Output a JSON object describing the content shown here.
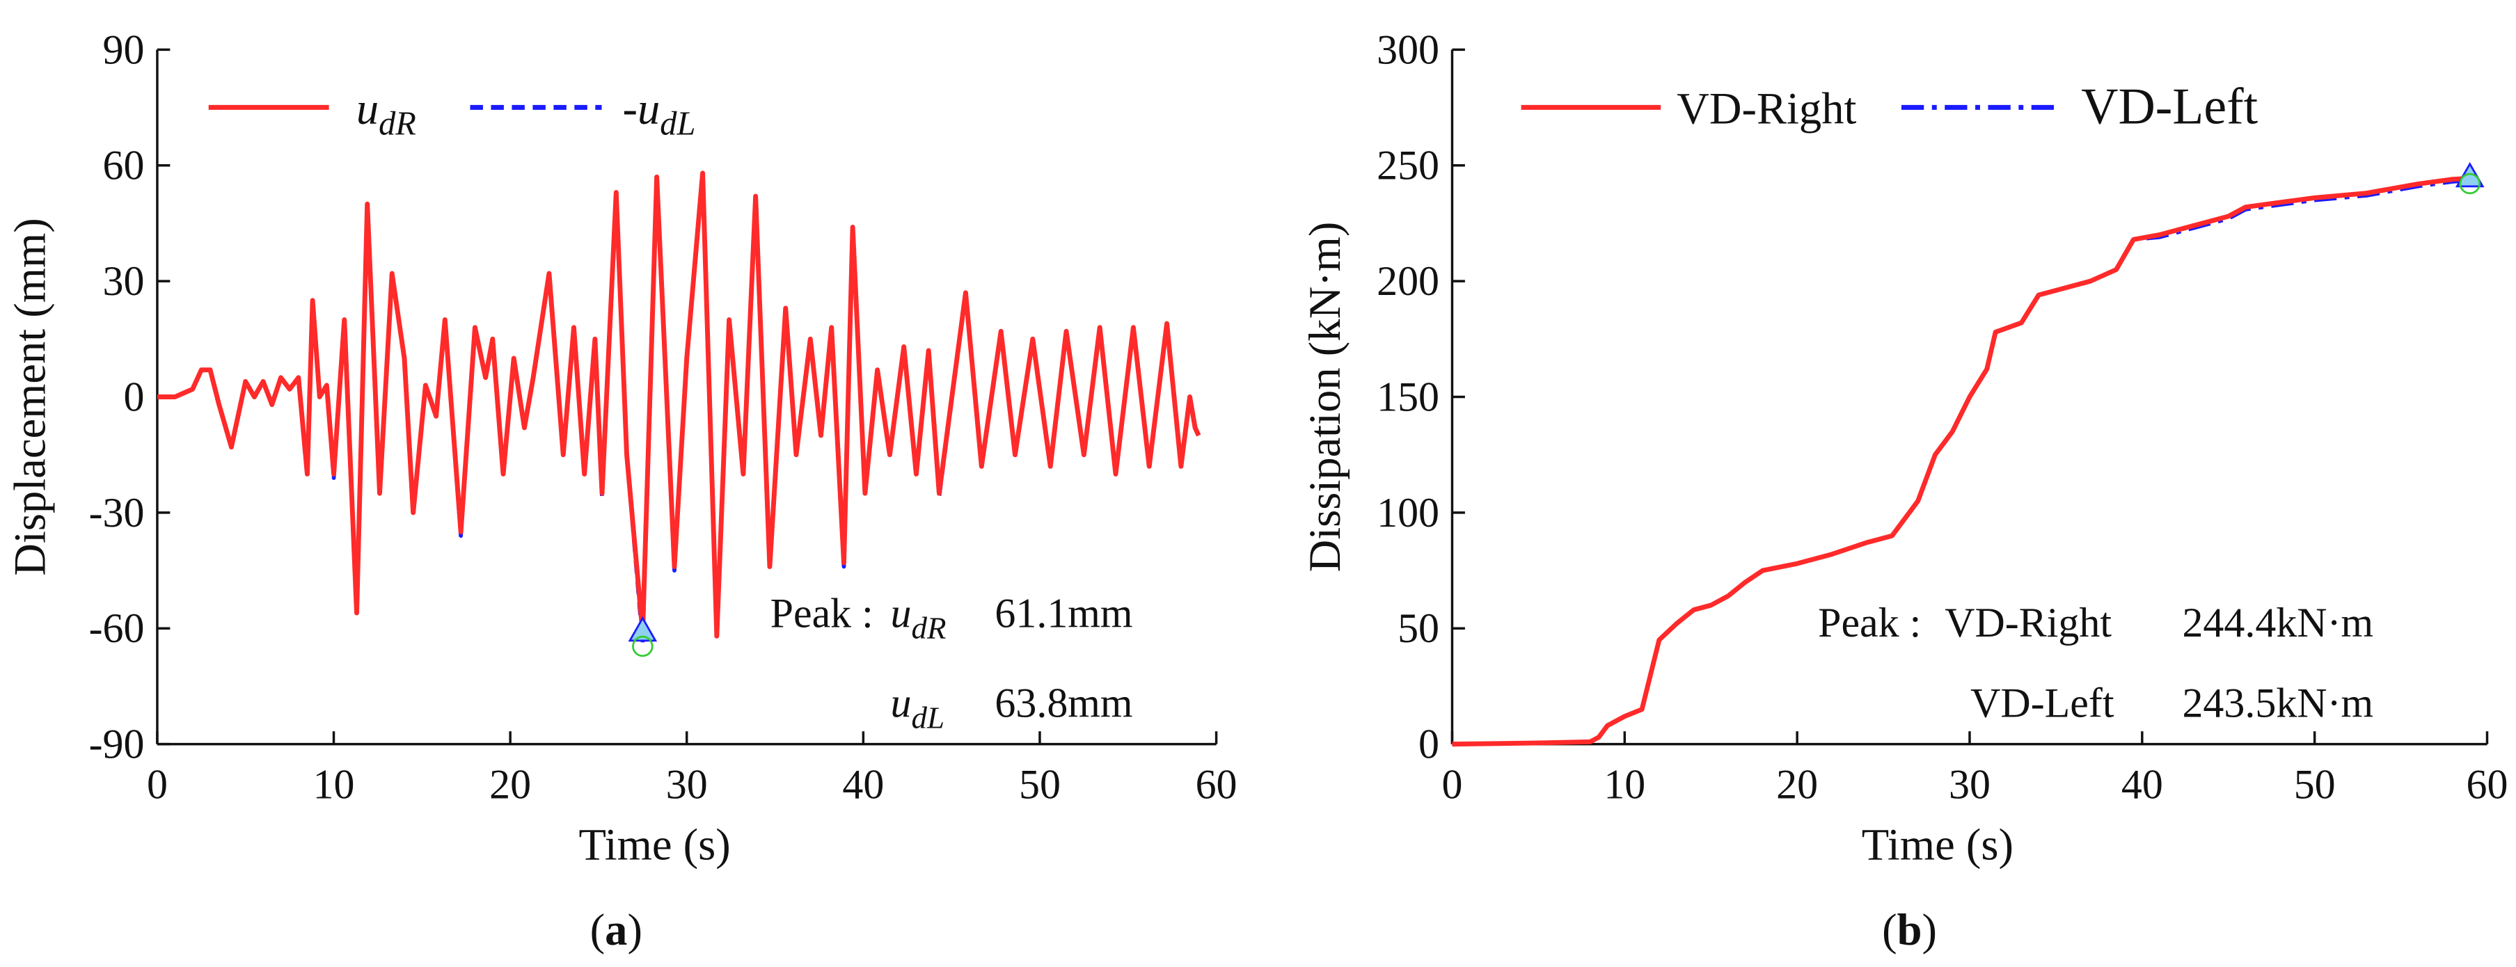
{
  "chart_data": [
    {
      "type": "line",
      "caption": "(a)",
      "xlabel": "Time (s)",
      "ylabel": "Displacement (mm)",
      "xlim": [
        0,
        60
      ],
      "xticks": [
        0,
        10,
        20,
        30,
        40,
        50,
        60
      ],
      "ylim": [
        -90,
        90
      ],
      "yticks": [
        -90,
        -60,
        -30,
        0,
        30,
        60,
        90
      ],
      "x": [
        0,
        1,
        2,
        2.5,
        3,
        3.5,
        4.2,
        5,
        5.5,
        6,
        6.5,
        7,
        7.5,
        8,
        8.5,
        8.8,
        9.2,
        9.6,
        10,
        10.6,
        11.3,
        11.9,
        12.6,
        13.3,
        14,
        14.5,
        15.2,
        15.8,
        16.3,
        17.2,
        18,
        18.6,
        19,
        19.6,
        20.2,
        20.8,
        21.3,
        22.2,
        23,
        23.6,
        24.2,
        24.8,
        25.2,
        26,
        26.6,
        27.5,
        28.3,
        29.3,
        30,
        30.9,
        31.7,
        32.4,
        33.2,
        33.9,
        34.7,
        35.6,
        36.2,
        37,
        37.6,
        38.2,
        38.9,
        39.4,
        40.1,
        40.8,
        41.5,
        42.3,
        43,
        43.7,
        44.3,
        45.8,
        46.7,
        47.8,
        48.6,
        49.6,
        50.6,
        51.5,
        52.5,
        53.4,
        54.3,
        55.3,
        56.2,
        57.2,
        58,
        58.5,
        58.8,
        59
      ],
      "series": [
        {
          "name": "-udL",
          "color": "#1a1aff",
          "style": "dashed",
          "values": [
            0,
            0,
            2,
            7,
            7,
            -2,
            -13,
            4,
            0,
            4,
            -2,
            5,
            2,
            5,
            -21,
            25,
            0,
            3,
            -21,
            20,
            -57,
            50,
            -25,
            32,
            10,
            -30,
            3,
            -5,
            20,
            -36,
            18,
            5,
            15,
            -20,
            10,
            -8,
            5,
            32,
            -15,
            18,
            -20,
            15,
            -26,
            53,
            -15,
            -63.8,
            57,
            -45,
            10,
            58,
            -63,
            20,
            -20,
            52,
            -45,
            23,
            -15,
            15,
            -10,
            18,
            -44,
            44,
            -25,
            7,
            -15,
            13,
            -20,
            12,
            -26,
            27,
            -18,
            17,
            -15,
            15,
            -18,
            17,
            -15,
            18,
            -20,
            18,
            -18,
            19,
            -18,
            0,
            -8,
            -10
          ]
        },
        {
          "name": "udR",
          "color": "#ff2a2a",
          "style": "solid",
          "values": [
            0,
            0,
            2,
            7,
            7,
            -2,
            -13,
            4,
            0,
            4,
            -2,
            5,
            2,
            5,
            -20,
            25,
            0,
            3,
            -20,
            20,
            -56,
            50,
            -25,
            32,
            10,
            -30,
            3,
            -5,
            20,
            -35,
            18,
            5,
            15,
            -20,
            10,
            -8,
            5,
            32,
            -15,
            18,
            -20,
            15,
            -25,
            53,
            -15,
            -61.1,
            57,
            -44,
            10,
            58,
            -62,
            20,
            -20,
            52,
            -44,
            23,
            -15,
            15,
            -10,
            18,
            -43,
            44,
            -25,
            7,
            -15,
            13,
            -20,
            12,
            -25,
            27,
            -18,
            17,
            -15,
            15,
            -18,
            17,
            -15,
            18,
            -20,
            18,
            -18,
            19,
            -18,
            0,
            -8,
            -10
          ]
        }
      ],
      "markers": [
        {
          "x": 27.5,
          "y": -61.1,
          "shape": "triangle"
        },
        {
          "x": 27.5,
          "y": -63.8,
          "shape": "circle"
        }
      ],
      "peak": {
        "label": "Peak :",
        "items": [
          {
            "name": "udR",
            "text": "61.1mm"
          },
          {
            "name": "udL",
            "text": "63.8mm"
          }
        ]
      }
    },
    {
      "type": "line",
      "caption": "(b)",
      "xlabel": "Time (s)",
      "ylabel": "Dissipation (kN·m)",
      "xlim": [
        0,
        60
      ],
      "xticks": [
        0,
        10,
        20,
        30,
        40,
        50,
        60
      ],
      "ylim": [
        0,
        300
      ],
      "yticks": [
        0,
        50,
        100,
        150,
        200,
        250,
        300
      ],
      "x": [
        0,
        5,
        8,
        8.5,
        9,
        10,
        11,
        11.5,
        12,
        13,
        14,
        15,
        16,
        17,
        18,
        20,
        22,
        24,
        25.5,
        26.5,
        27,
        28,
        29,
        30,
        31,
        31.5,
        33,
        34,
        35,
        37,
        38.5,
        39.5,
        41,
        43,
        45,
        46,
        48,
        50,
        53,
        56,
        58,
        59
      ],
      "series": [
        {
          "name": "VD-Left",
          "color": "#1a1aff",
          "style": "dashdot",
          "values": [
            0,
            0.5,
            1,
            3,
            8,
            12,
            15,
            30,
            45,
            52,
            58,
            60,
            64,
            70,
            75,
            78,
            82,
            87,
            90,
            100,
            105,
            125,
            135,
            150,
            162,
            178,
            182,
            194,
            196,
            200,
            205,
            218,
            219,
            223,
            227,
            231,
            233,
            235,
            237,
            241,
            243,
            243.5
          ]
        },
        {
          "name": "VD-Right",
          "color": "#ff2a2a",
          "style": "solid",
          "values": [
            0,
            0.5,
            1,
            3,
            8,
            12,
            15,
            30,
            45,
            52,
            58,
            60,
            64,
            70,
            75,
            78,
            82,
            87,
            90,
            100,
            105,
            125,
            135,
            150,
            162,
            178,
            182,
            194,
            196,
            200,
            205,
            218,
            220,
            224,
            228,
            232,
            234,
            236,
            238,
            242,
            244,
            244.4
          ]
        }
      ],
      "markers": [
        {
          "x": 59,
          "y": 244.4,
          "shape": "triangle"
        },
        {
          "x": 59,
          "y": 243.5,
          "shape": "circle"
        }
      ],
      "peak": {
        "label": "Peak :",
        "items": [
          {
            "name": "VD-Right",
            "text": "244.4kN·m"
          },
          {
            "name": "VD-Left",
            "text": "243.5kN·m"
          }
        ]
      }
    }
  ]
}
